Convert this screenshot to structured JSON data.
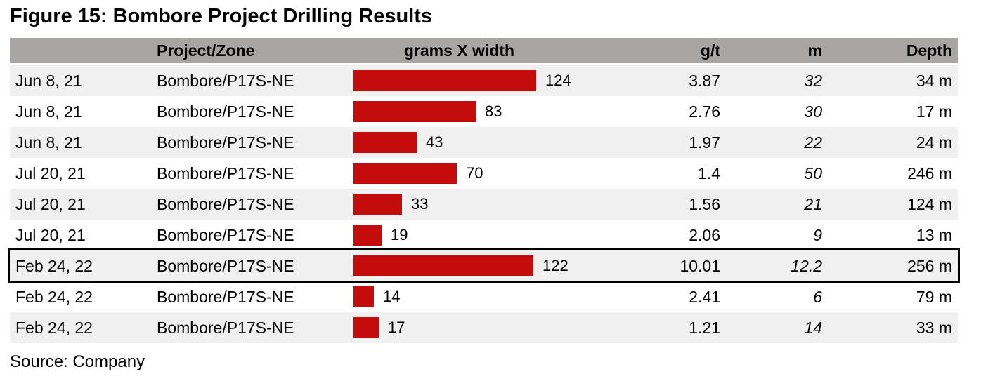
{
  "title": "Figure 15: Bombore Project Drilling Results",
  "source": "Source: Company",
  "colors": {
    "bar": "#c40c0c",
    "header_bg": "#a8a5a2",
    "row_alt": "#f0f0f0",
    "highlight_border": "#000000",
    "text": "#000000"
  },
  "table": {
    "headers": [
      "",
      "Project/Zone",
      "grams X width",
      "g/t",
      "m",
      "Depth"
    ],
    "rows": [
      {
        "date": "Jun 8, 21",
        "zone": "Bombore/P17S-NE",
        "grams_x_width": 124,
        "g_t": "3.87",
        "m": "32",
        "depth": "34 m",
        "highlighted": false
      },
      {
        "date": "Jun 8, 21",
        "zone": "Bombore/P17S-NE",
        "grams_x_width": 83,
        "g_t": "2.76",
        "m": "30",
        "depth": "17 m",
        "highlighted": false
      },
      {
        "date": "Jun 8, 21",
        "zone": "Bombore/P17S-NE",
        "grams_x_width": 43,
        "g_t": "1.97",
        "m": "22",
        "depth": "24 m",
        "highlighted": false
      },
      {
        "date": "Jul 20, 21",
        "zone": "Bombore/P17S-NE",
        "grams_x_width": 70,
        "g_t": "1.4",
        "m": "50",
        "depth": "246 m",
        "highlighted": false
      },
      {
        "date": "Jul 20, 21",
        "zone": "Bombore/P17S-NE",
        "grams_x_width": 33,
        "g_t": "1.56",
        "m": "21",
        "depth": "124 m",
        "highlighted": false
      },
      {
        "date": "Jul 20, 21",
        "zone": "Bombore/P17S-NE",
        "grams_x_width": 19,
        "g_t": "2.06",
        "m": "9",
        "depth": "13 m",
        "highlighted": false
      },
      {
        "date": "Feb 24, 22",
        "zone": "Bombore/P17S-NE",
        "grams_x_width": 122,
        "g_t": "10.01",
        "m": "12.2",
        "depth": "256 m",
        "highlighted": true
      },
      {
        "date": "Feb 24, 22",
        "zone": "Bombore/P17S-NE",
        "grams_x_width": 14,
        "g_t": "2.41",
        "m": "6",
        "depth": "79 m",
        "highlighted": false
      },
      {
        "date": "Feb 24, 22",
        "zone": "Bombore/P17S-NE",
        "grams_x_width": 17,
        "g_t": "1.21",
        "m": "14",
        "depth": "33 m",
        "highlighted": false
      }
    ]
  },
  "chart_data": {
    "type": "bar",
    "orientation": "horizontal",
    "title": "Figure 15: Bombore Project Drilling Results",
    "series": [
      {
        "name": "grams X width",
        "values": [
          124,
          83,
          43,
          70,
          33,
          19,
          122,
          14,
          17
        ]
      },
      {
        "name": "g/t",
        "values": [
          3.87,
          2.76,
          1.97,
          1.4,
          1.56,
          2.06,
          10.01,
          2.41,
          1.21
        ]
      },
      {
        "name": "m",
        "values": [
          32,
          30,
          22,
          50,
          21,
          9,
          12.2,
          6,
          14
        ]
      },
      {
        "name": "Depth (m)",
        "values": [
          34,
          17,
          24,
          246,
          124,
          13,
          256,
          79,
          33
        ]
      }
    ],
    "categories": [
      "Jun 8, 21",
      "Jun 8, 21",
      "Jun 8, 21",
      "Jul 20, 21",
      "Jul 20, 21",
      "Jul 20, 21",
      "Feb 24, 22",
      "Feb 24, 22",
      "Feb 24, 22"
    ],
    "zone": "Bombore/P17S-NE",
    "bar_series_shown_as_bars": "grams X width",
    "bar_axis_range": [
      0,
      130
    ],
    "highlighted_row_index": 6,
    "data_labels": true,
    "grid": false,
    "legend": false,
    "source": "Source: Company"
  }
}
